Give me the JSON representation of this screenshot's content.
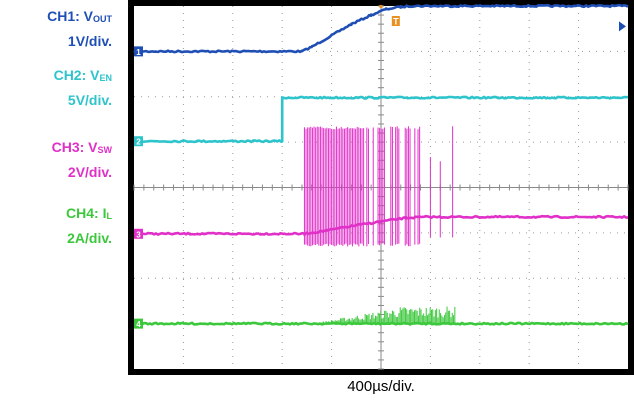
{
  "legend": [
    {
      "name": "CH1: V",
      "sub": "OUT",
      "scale": "1V/div.",
      "color": "#1f4fb5"
    },
    {
      "name": "CH2: V",
      "sub": "EN",
      "scale": "5V/div.",
      "color": "#2ec4cc"
    },
    {
      "name": "CH3: V",
      "sub": "SW",
      "scale": "2V/div.",
      "color": "#e030c8"
    },
    {
      "name": "CH4: I",
      "sub": "L",
      "scale": "2A/div.",
      "color": "#3cc83c"
    }
  ],
  "timebase": "400µs/div.",
  "chart_data": {
    "type": "line",
    "title": "",
    "xlabel": "400µs/div.",
    "ylabel": "",
    "grid": true,
    "x_divisions": 10,
    "y_divisions": 8,
    "xlim": [
      -1.6,
      8.4
    ],
    "ylim": [
      0,
      8
    ],
    "units": {
      "x": "horizontal divisions (400µs/div)",
      "y": "vertical divisions"
    },
    "trigger_marker": {
      "label": "T",
      "x": 3.7,
      "color": "#e89020"
    },
    "series": [
      {
        "name": "CH1: VOUT",
        "color": "#1f4fb5",
        "marker": "1",
        "baseline_div": 7.0,
        "points": [
          [
            -1.6,
            7.0
          ],
          [
            1.8,
            7.0
          ],
          [
            2.0,
            7.1
          ],
          [
            2.4,
            7.35
          ],
          [
            2.8,
            7.6
          ],
          [
            3.2,
            7.8
          ],
          [
            3.5,
            7.93
          ],
          [
            3.8,
            7.98
          ],
          [
            4.0,
            8.0
          ],
          [
            8.4,
            8.0
          ]
        ]
      },
      {
        "name": "CH2: VEN",
        "color": "#2ec4cc",
        "marker": "2",
        "baseline_div": 5.02,
        "points": [
          [
            -1.6,
            5.02
          ],
          [
            1.38,
            5.02
          ],
          [
            1.4,
            5.02
          ],
          [
            1.4,
            5.98
          ],
          [
            8.4,
            5.98
          ]
        ]
      },
      {
        "name": "CH3: VSW",
        "color": "#e030c8",
        "marker": "3",
        "baseline_div": 2.98,
        "switching": {
          "start": 1.85,
          "end": 4.2,
          "last_spike": 4.85,
          "high_div": 5.35,
          "low_div": 2.7
        },
        "points": [
          [
            -1.6,
            2.98
          ],
          [
            1.85,
            2.98
          ],
          [
            2.3,
            3.05
          ],
          [
            2.8,
            3.15
          ],
          [
            3.4,
            3.25
          ],
          [
            3.9,
            3.33
          ],
          [
            4.3,
            3.35
          ],
          [
            8.4,
            3.35
          ]
        ]
      },
      {
        "name": "CH4: IL",
        "color": "#3cc83c",
        "marker": "4",
        "baseline_div": 1.0,
        "noise": {
          "start": 2.0,
          "end": 4.9,
          "peak_div": 1.38
        },
        "points": [
          [
            -1.6,
            1.0
          ],
          [
            8.4,
            1.0
          ]
        ]
      }
    ]
  }
}
